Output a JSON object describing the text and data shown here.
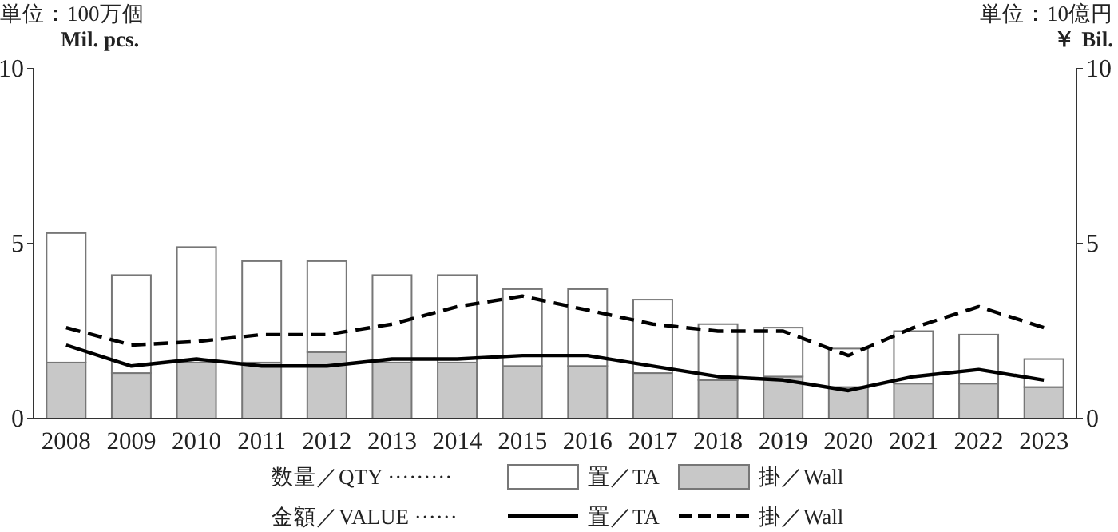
{
  "chart_data": {
    "type": "bar",
    "stacked": true,
    "ylabel": "単位：100万個\nMil. pcs.",
    "y2label": "単位：10億円",
    "categories": [
      "2008",
      "2009",
      "2010",
      "2011",
      "2012",
      "2013",
      "2014",
      "2015",
      "2016",
      "2017",
      "2018",
      "2019",
      "2020",
      "2021",
      "2022",
      "2023"
    ],
    "series": [
      {
        "name": "掛／Wall",
        "color": "#c8c8c8",
        "values": [
          1.6,
          1.3,
          1.6,
          1.6,
          1.9,
          1.6,
          1.6,
          1.5,
          1.5,
          1.3,
          1.1,
          1.2,
          0.9,
          1.0,
          1.0,
          0.9
        ]
      },
      {
        "name": "置／TA",
        "color": "#ffffff",
        "values": [
          3.7,
          2.8,
          3.3,
          2.9,
          2.6,
          2.5,
          2.5,
          2.2,
          2.2,
          2.1,
          1.6,
          1.4,
          1.1,
          1.5,
          1.4,
          0.8
        ]
      },
      {
        "type": "line",
        "name": "置／TA",
        "color": "#000000",
        "line_style": "solid",
        "values": [
          2.1,
          1.5,
          1.7,
          1.5,
          1.5,
          1.7,
          1.7,
          1.8,
          1.8,
          1.5,
          1.2,
          1.1,
          0.8,
          1.2,
          1.4,
          1.1
        ]
      },
      {
        "type": "line",
        "name": "掛／Wall",
        "color": "#000000",
        "line_style": "dashed",
        "values": [
          2.6,
          2.1,
          2.2,
          2.4,
          2.4,
          2.7,
          3.2,
          3.5,
          3.1,
          2.7,
          2.5,
          2.5,
          1.8,
          2.6,
          3.2,
          2.6
        ]
      }
    ],
    "ylim": [
      0,
      10
    ],
    "yticks": [
      0,
      5,
      10
    ],
    "y2lim": [
      0,
      10
    ],
    "y2ticks": [
      0,
      5,
      10
    ],
    "grid": false,
    "legend": "bottom",
    "annotations": [
      "数量／QTY ·········",
      "金額／VALUE ······",
      "￥ Bil."
    ]
  }
}
